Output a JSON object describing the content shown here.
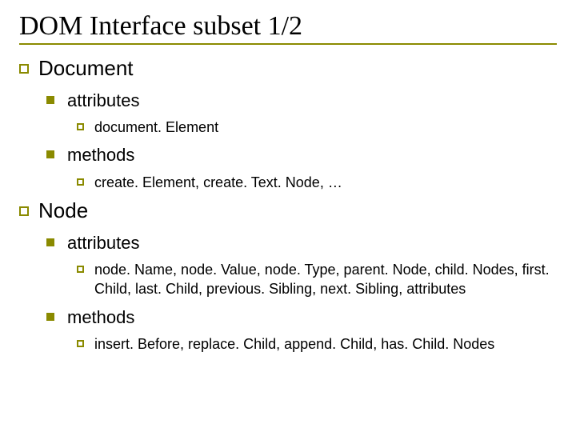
{
  "colors": {
    "accent": "#8a8a00",
    "text": "#000000",
    "background": "#ffffff"
  },
  "title": "DOM Interface subset 1/2",
  "items": [
    {
      "label": "Document",
      "children": [
        {
          "label": "attributes",
          "children": [
            {
              "label": "document. Element"
            }
          ]
        },
        {
          "label": "methods",
          "children": [
            {
              "label": "create. Element, create. Text. Node, …"
            }
          ]
        }
      ]
    },
    {
      "label": "Node",
      "children": [
        {
          "label": "attributes",
          "children": [
            {
              "label": "node. Name, node. Value, node. Type, parent. Node, child. Nodes, first. Child, last. Child, previous. Sibling, next. Sibling, attributes"
            }
          ]
        },
        {
          "label": "methods",
          "children": [
            {
              "label": "insert. Before, replace. Child, append. Child, has. Child. Nodes"
            }
          ]
        }
      ]
    }
  ]
}
